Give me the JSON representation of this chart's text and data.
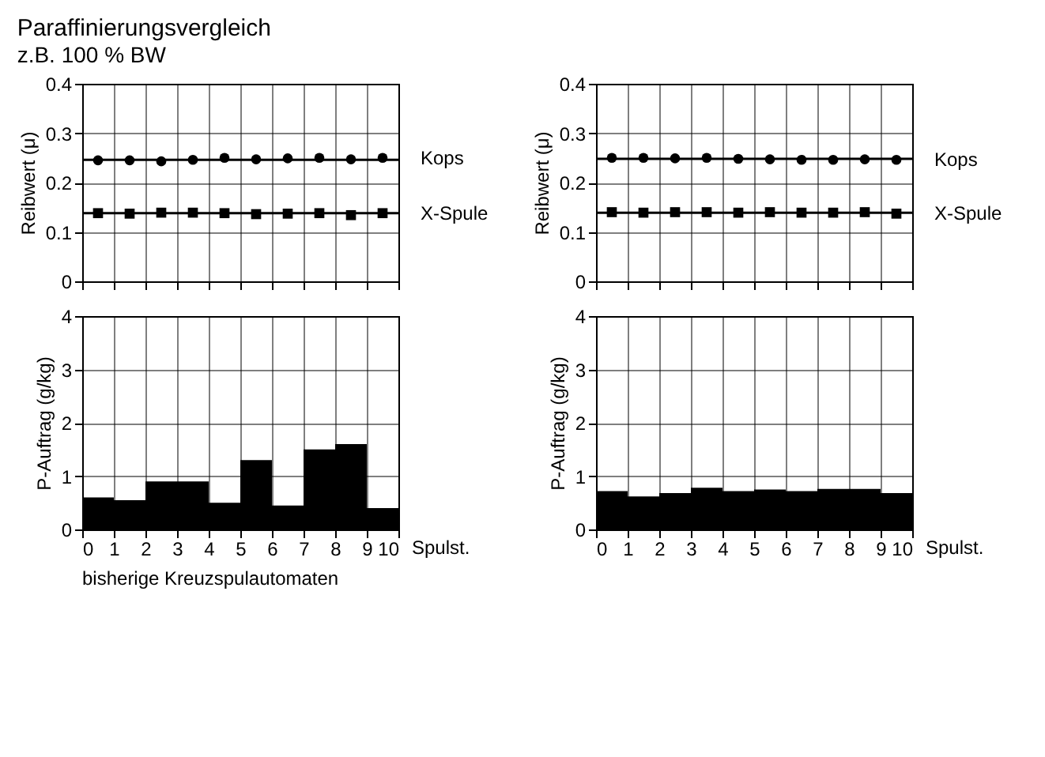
{
  "chart_data": [
    {
      "type": "scatter",
      "title": "Paraffinierungsvergleich",
      "subtitle": "z.B. 100 % BW",
      "ylabel": "Reibwert (μ)",
      "x": [
        0.5,
        1.5,
        2.5,
        3.5,
        4.5,
        5.5,
        6.5,
        7.5,
        8.5,
        9.5
      ],
      "xlim": [
        0,
        10
      ],
      "xticks": [
        0,
        1,
        2,
        3,
        4,
        5,
        6,
        7,
        8,
        9,
        10
      ],
      "ylim": [
        0,
        0.4
      ],
      "yticks": [
        0,
        0.1,
        0.2,
        0.3,
        0.4
      ],
      "grid": true,
      "tick_labels": "y",
      "series": [
        {
          "name": "Kops",
          "color": "#000000",
          "marker": "circle",
          "values": [
            0.245,
            0.245,
            0.243,
            0.246,
            0.25,
            0.247,
            0.249,
            0.25,
            0.247,
            0.25
          ]
        },
        {
          "name": "X-Spule",
          "color": "#000000",
          "marker": "square",
          "values": [
            0.138,
            0.137,
            0.139,
            0.139,
            0.138,
            0.136,
            0.137,
            0.138,
            0.134,
            0.138
          ]
        }
      ],
      "ref_lines": [
        {
          "axis": "y",
          "value": 0.246,
          "color": "#000000"
        },
        {
          "axis": "y",
          "value": 0.138,
          "color": "#000000"
        }
      ]
    },
    {
      "type": "histogram",
      "ylabel": "P-Auftrag (g/kg)",
      "xlabel": "Spulst.",
      "bins": [
        0,
        1,
        2,
        3,
        4,
        5,
        6,
        7,
        8,
        9,
        10
      ],
      "values": [
        0.6,
        0.55,
        0.9,
        0.9,
        0.5,
        1.3,
        0.45,
        1.5,
        1.6,
        0.4
      ],
      "color": "#000000",
      "xlim": [
        0,
        10
      ],
      "xticks": [
        0,
        1,
        2,
        3,
        4,
        5,
        6,
        7,
        8,
        9,
        10
      ],
      "ylim": [
        0,
        4
      ],
      "yticks": [
        0,
        1,
        2,
        3,
        4
      ],
      "grid": true,
      "annotations": [
        "bisherige Kreuzspulautomaten"
      ]
    },
    {
      "type": "scatter",
      "ylabel": "Reibwert (μ)",
      "x": [
        0.5,
        1.5,
        2.5,
        3.5,
        4.5,
        5.5,
        6.5,
        7.5,
        8.5,
        9.5
      ],
      "xlim": [
        0,
        10
      ],
      "xticks": [
        0,
        1,
        2,
        3,
        4,
        5,
        6,
        7,
        8,
        9,
        10
      ],
      "ylim": [
        0,
        0.4
      ],
      "yticks": [
        0,
        0.1,
        0.2,
        0.3,
        0.4
      ],
      "grid": true,
      "tick_labels": "y",
      "series": [
        {
          "name": "Kops",
          "color": "#000000",
          "marker": "circle",
          "values": [
            0.25,
            0.25,
            0.249,
            0.25,
            0.248,
            0.247,
            0.246,
            0.246,
            0.247,
            0.246
          ]
        },
        {
          "name": "X-Spule",
          "color": "#000000",
          "marker": "square",
          "values": [
            0.14,
            0.139,
            0.14,
            0.14,
            0.139,
            0.14,
            0.139,
            0.139,
            0.14,
            0.137
          ]
        }
      ],
      "ref_lines": [
        {
          "axis": "y",
          "value": 0.248,
          "color": "#000000"
        },
        {
          "axis": "y",
          "value": 0.139,
          "color": "#000000"
        }
      ]
    },
    {
      "type": "histogram",
      "ylabel": "P-Auftrag (g/kg)",
      "xlabel": "Spulst.",
      "bins": [
        0,
        1,
        2,
        3,
        4,
        5,
        6,
        7,
        8,
        9,
        10
      ],
      "values": [
        0.72,
        0.62,
        0.68,
        0.78,
        0.72,
        0.75,
        0.72,
        0.76,
        0.76,
        0.68
      ],
      "color": "#000000",
      "xlim": [
        0,
        10
      ],
      "xticks": [
        0,
        1,
        2,
        3,
        4,
        5,
        6,
        7,
        8,
        9,
        10
      ],
      "ylim": [
        0,
        4
      ],
      "yticks": [
        0,
        1,
        2,
        3,
        4
      ],
      "grid": true
    }
  ]
}
